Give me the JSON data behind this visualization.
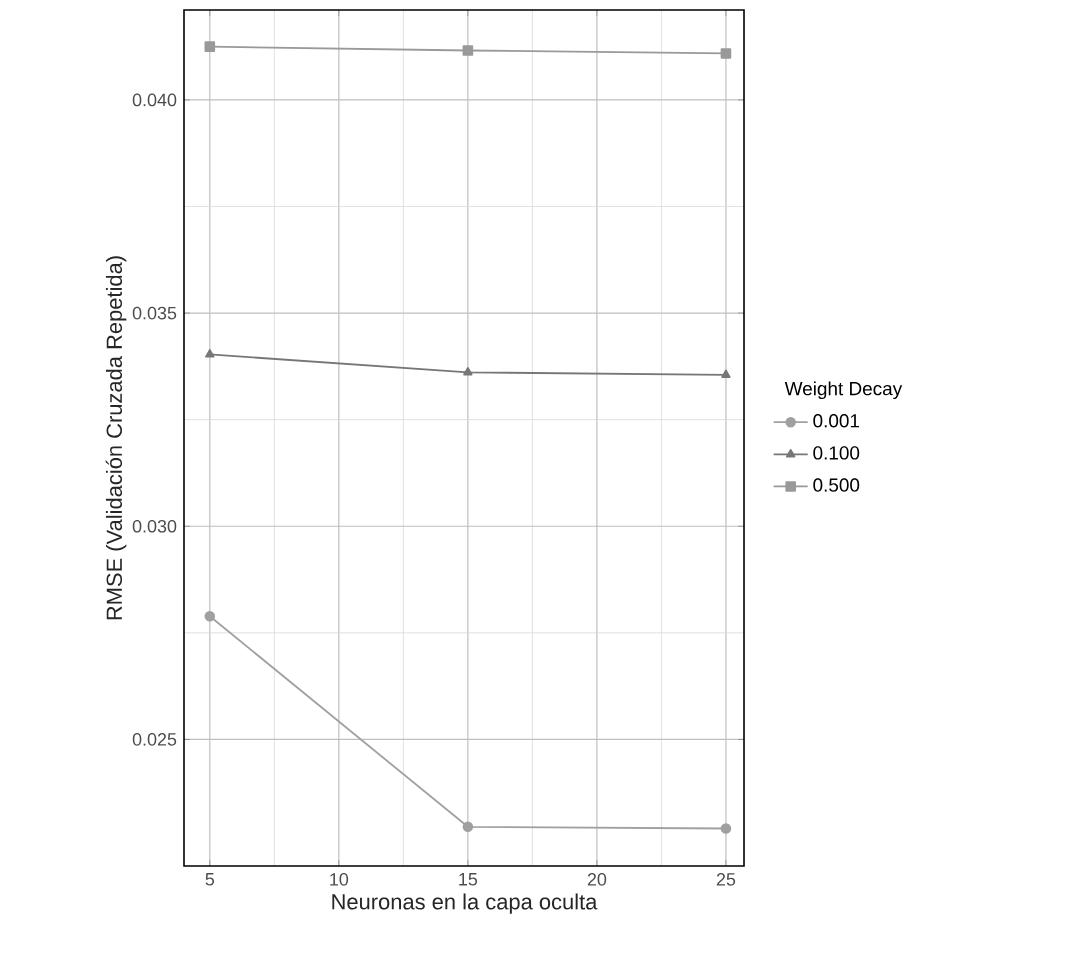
{
  "chart_data": {
    "type": "line",
    "xlabel": "Neuronas en la capa oculta",
    "ylabel": "RMSE (Validación Cruzada Repetida)",
    "legend_title": "Weight Decay",
    "x": [
      5,
      15,
      25
    ],
    "series": [
      {
        "name": "0.001",
        "color": "#a0a0a0",
        "marker": "circle",
        "values": [
          0.02789,
          0.02295,
          0.02291
        ]
      },
      {
        "name": "0.100",
        "color": "#777777",
        "marker": "triangle",
        "values": [
          0.03403,
          0.03361,
          0.03355
        ]
      },
      {
        "name": "0.500",
        "color": "#999999",
        "marker": "square",
        "values": [
          0.04125,
          0.04116,
          0.04109
        ]
      }
    ],
    "xlim": [
      4,
      25.7
    ],
    "ylim": [
      0.02203,
      0.04211
    ],
    "xticks": [
      5,
      10,
      15,
      20,
      25
    ],
    "yticks": [
      {
        "value": 0.025,
        "label": "0.025"
      },
      {
        "value": 0.03,
        "label": "0.030"
      },
      {
        "value": 0.035,
        "label": "0.035"
      },
      {
        "value": 0.04,
        "label": "0.040"
      }
    ],
    "grid": true,
    "legend": "right",
    "line_style": "solid"
  }
}
